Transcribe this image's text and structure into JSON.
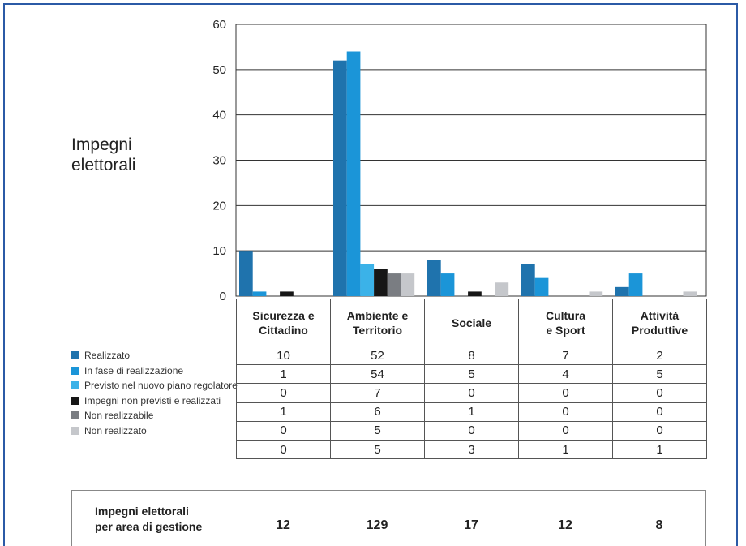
{
  "side_title": [
    "Impegni",
    "elettorali"
  ],
  "colors": {
    "frame": "#2b5aa6"
  },
  "chart_data": {
    "type": "bar",
    "categories": [
      [
        "Sicurezza e",
        "Cittadino"
      ],
      [
        "Ambiente e",
        "Territorio"
      ],
      [
        "Sociale"
      ],
      [
        "Cultura",
        "e Sport"
      ],
      [
        "Attività",
        "Produttive"
      ]
    ],
    "ylim": [
      0,
      60
    ],
    "yticks": [
      0,
      10,
      20,
      30,
      40,
      50,
      60
    ],
    "grid": true,
    "legend_position": "left",
    "series": [
      {
        "name": "Realizzato",
        "color": "#1f73ad",
        "values": [
          10,
          52,
          8,
          7,
          2
        ]
      },
      {
        "name": "In fase di realizzazione",
        "color": "#1b95d8",
        "values": [
          1,
          54,
          5,
          4,
          5
        ]
      },
      {
        "name": "Previsto nel nuovo piano regolatore",
        "color": "#3bb2e8",
        "values": [
          0,
          7,
          0,
          0,
          0
        ]
      },
      {
        "name": "Impegni non previsti e realizzati",
        "color": "#161616",
        "values": [
          1,
          6,
          1,
          0,
          0
        ]
      },
      {
        "name": "Non realizzabile",
        "color": "#7a7d82",
        "values": [
          0,
          5,
          0,
          0,
          0
        ]
      },
      {
        "name": "Non realizzato",
        "color": "#c5c7cb",
        "values": [
          0,
          5,
          3,
          1,
          1
        ]
      }
    ]
  },
  "totals": {
    "label": [
      "Impegni elettorali",
      "per area di gestione"
    ],
    "values": [
      "12",
      "129",
      "17",
      "12",
      "8"
    ]
  }
}
